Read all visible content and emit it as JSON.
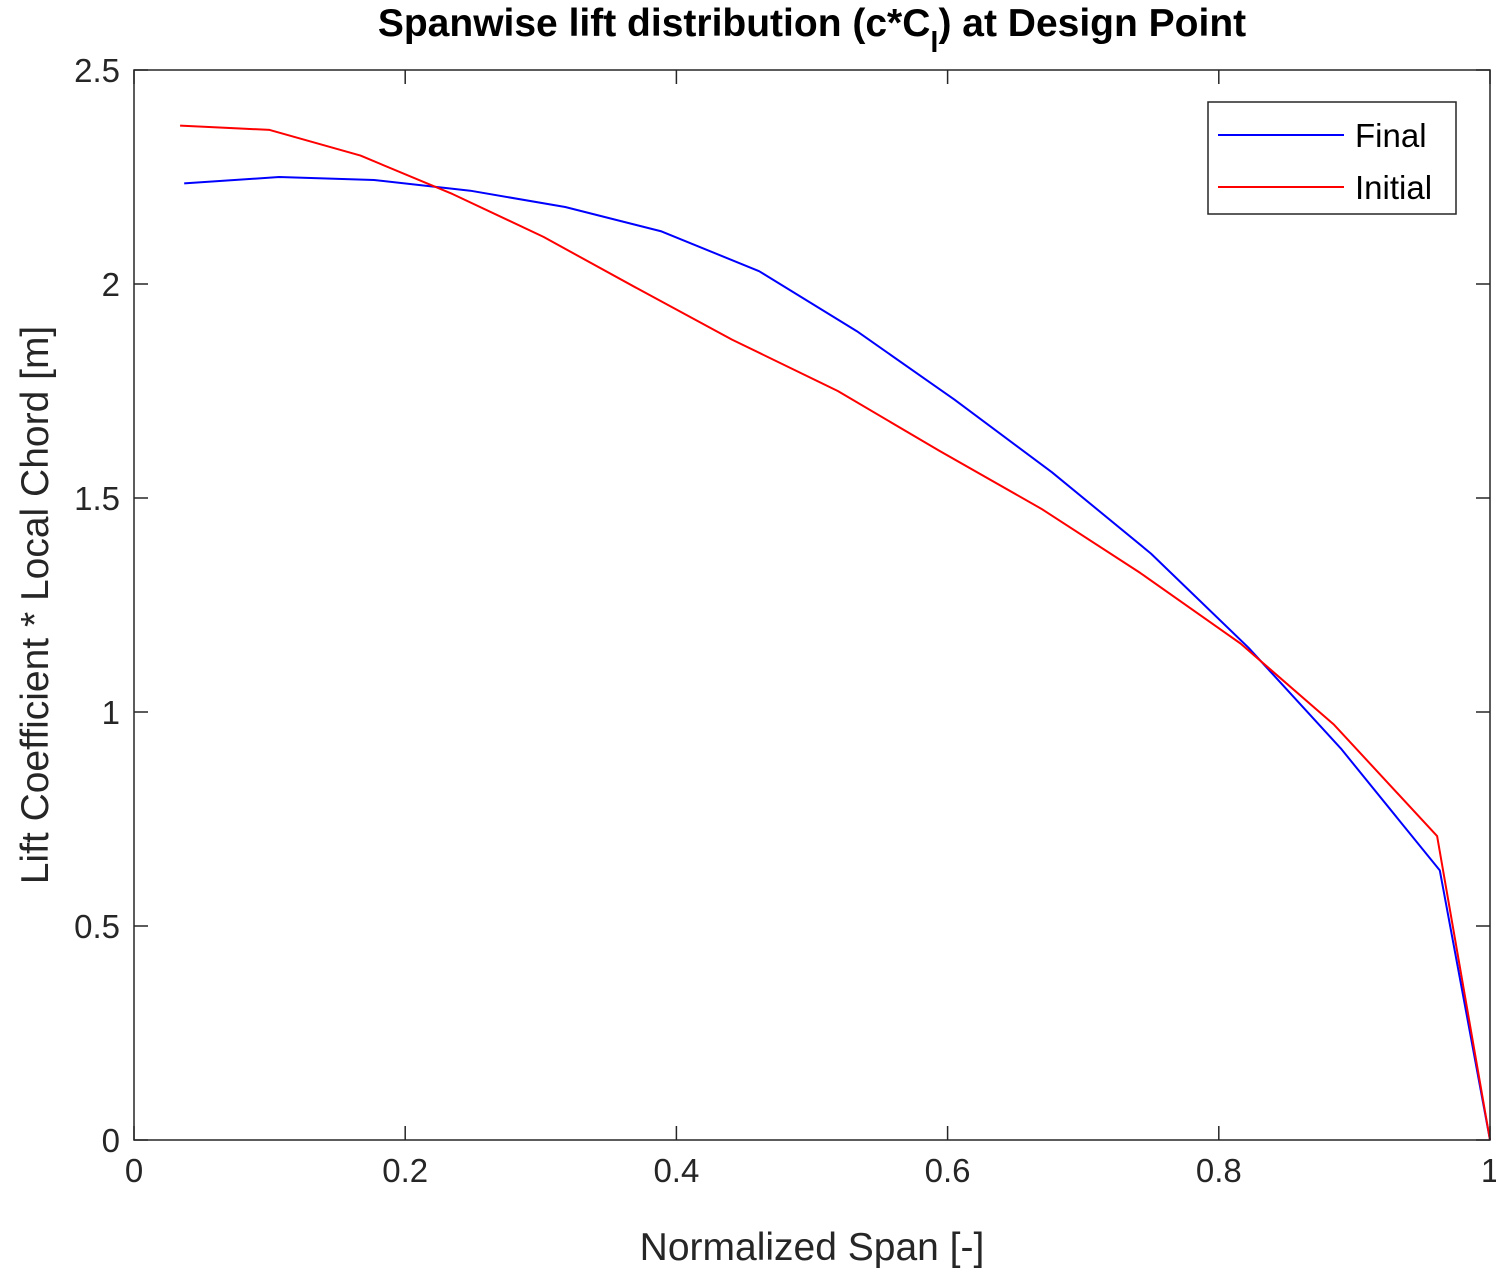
{
  "chart_data": {
    "type": "line",
    "title": {
      "prefix": "Spanwise lift distribution (c*C",
      "subscript": "l",
      "suffix": ") at Design Point"
    },
    "xlabel": "Normalized Span [-]",
    "ylabel": "Lift Coefficient * Local Chord [m]",
    "xlim": [
      0,
      1
    ],
    "ylim": [
      0,
      2.5
    ],
    "xticks": [
      0,
      0.2,
      0.4,
      0.6,
      0.8,
      1
    ],
    "xtick_labels": [
      "0",
      "0.2",
      "0.4",
      "0.6",
      "0.8",
      "1"
    ],
    "yticks": [
      0,
      0.5,
      1,
      1.5,
      2,
      2.5
    ],
    "ytick_labels": [
      "0",
      "0.5",
      "1",
      "1.5",
      "2",
      "2.5"
    ],
    "grid": false,
    "box": true,
    "legend_position": "top-right",
    "series": [
      {
        "name": "Final",
        "color": "#0000ff",
        "x": [
          0.037,
          0.107,
          0.177,
          0.248,
          0.318,
          0.389,
          0.461,
          0.533,
          0.605,
          0.677,
          0.75,
          0.822,
          0.89,
          0.963,
          1.0
        ],
        "y": [
          2.235,
          2.25,
          2.243,
          2.218,
          2.18,
          2.123,
          2.03,
          1.89,
          1.73,
          1.56,
          1.37,
          1.15,
          0.915,
          0.63,
          0.0
        ]
      },
      {
        "name": "Initial",
        "color": "#ff0000",
        "x": [
          0.034,
          0.1,
          0.167,
          0.235,
          0.302,
          0.371,
          0.441,
          0.519,
          0.594,
          0.669,
          0.742,
          0.816,
          0.885,
          0.961,
          1.0
        ],
        "y": [
          2.37,
          2.36,
          2.3,
          2.21,
          2.11,
          1.99,
          1.87,
          1.75,
          1.61,
          1.475,
          1.325,
          1.16,
          0.97,
          0.71,
          0.0
        ]
      }
    ]
  }
}
